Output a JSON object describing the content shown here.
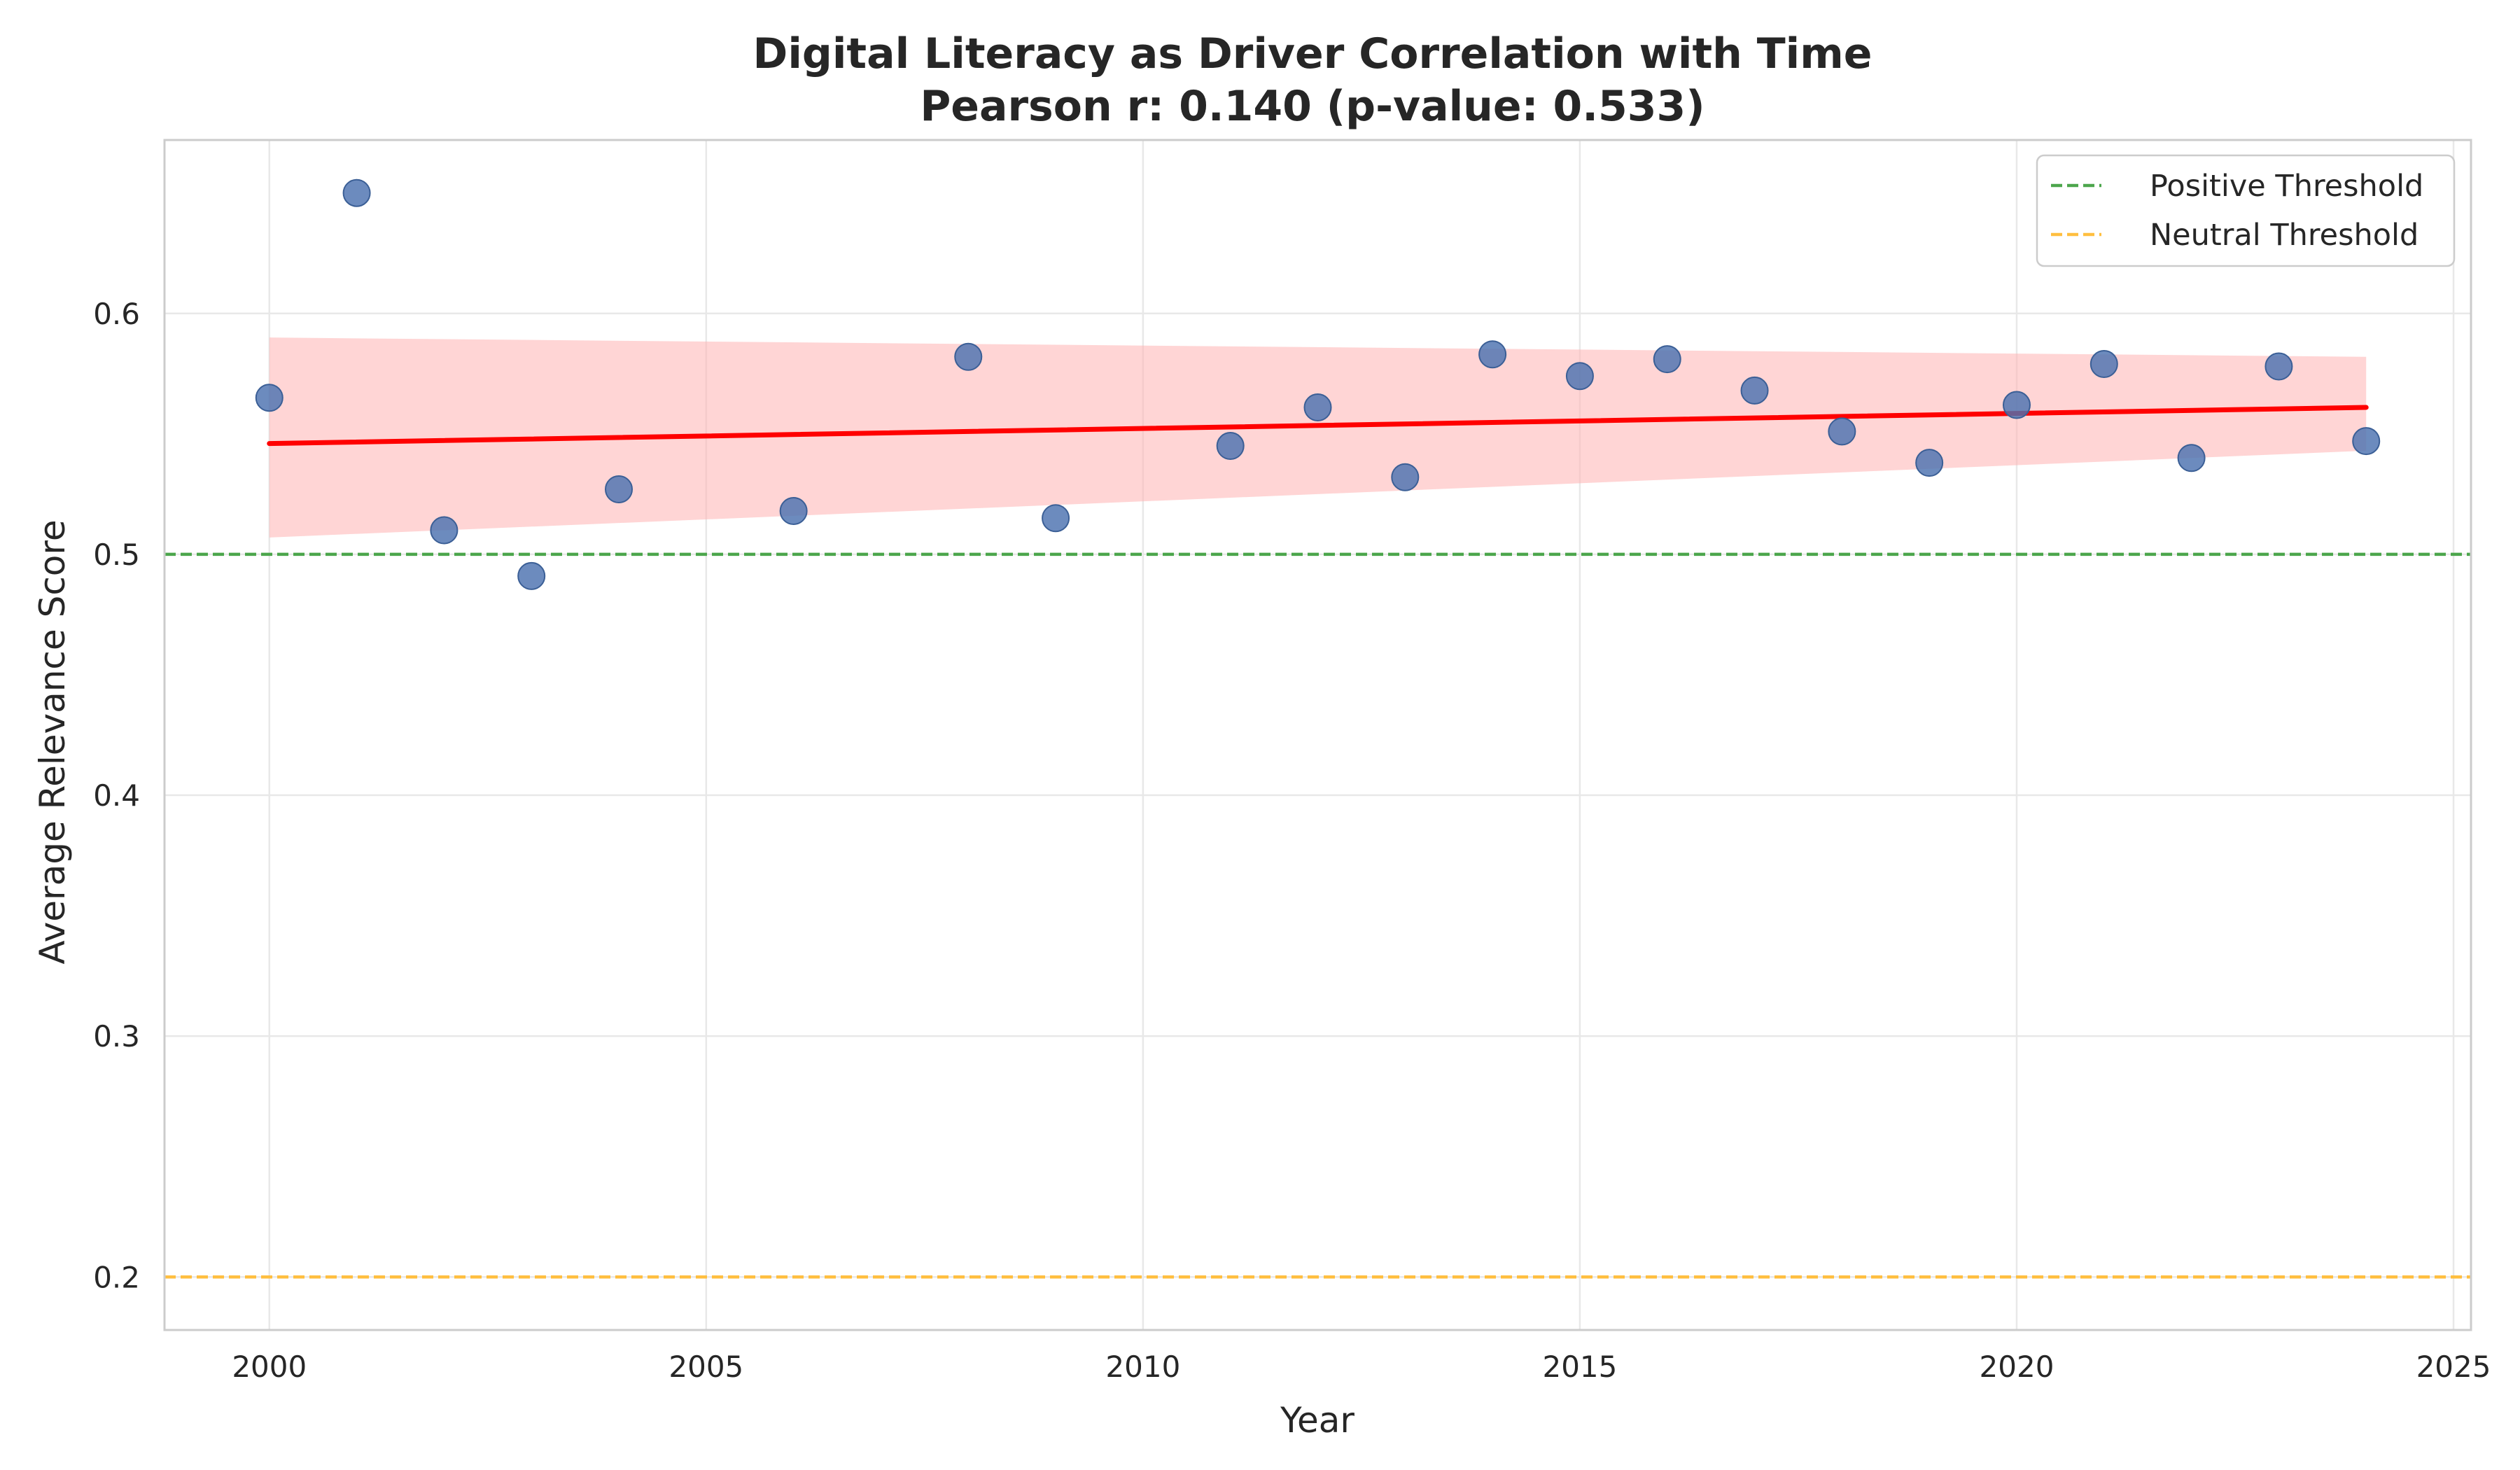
{
  "chart_data": {
    "type": "scatter",
    "title": "Digital Literacy as Driver Correlation with Time",
    "subtitle": "Pearson r: 0.140 (p-value: 0.533)",
    "xlabel": "Year",
    "ylabel": "Average Relevance Score",
    "xlim": [
      1998.8,
      2025.2
    ],
    "ylim": [
      0.178,
      0.672
    ],
    "xticks": [
      2000,
      2005,
      2010,
      2015,
      2020,
      2025
    ],
    "yticks": [
      0.2,
      0.3,
      0.4,
      0.5,
      0.6
    ],
    "grid": true,
    "legend_position": "top-right",
    "x": [
      2000,
      2001,
      2002,
      2003,
      2004,
      2006,
      2008,
      2009,
      2011,
      2012,
      2013,
      2014,
      2015,
      2016,
      2017,
      2018,
      2019,
      2020,
      2021,
      2022,
      2023,
      2024
    ],
    "series": [
      {
        "values": [
          0.565,
          0.65,
          0.51,
          0.491,
          0.527,
          0.518,
          0.582,
          0.515,
          0.545,
          0.561,
          0.532,
          0.583,
          0.574,
          0.581,
          0.568,
          0.551,
          0.538,
          0.562,
          0.579,
          0.54,
          0.578,
          0.547
        ],
        "color": "#4c72b0"
      }
    ],
    "trend_line": {
      "x": [
        2000,
        2024
      ],
      "y": [
        0.546,
        0.561
      ],
      "color": "#ff0000",
      "ci_upper": [
        0.59,
        0.582
      ],
      "ci_lower": [
        0.507,
        0.543
      ],
      "ci_color": "#ffb3b3"
    },
    "thresholds": [
      {
        "name": "Positive Threshold",
        "value": 0.5,
        "color": "#4ca64c"
      },
      {
        "name": "Neutral Threshold",
        "value": 0.2,
        "color": "#ffbf40"
      }
    ]
  }
}
